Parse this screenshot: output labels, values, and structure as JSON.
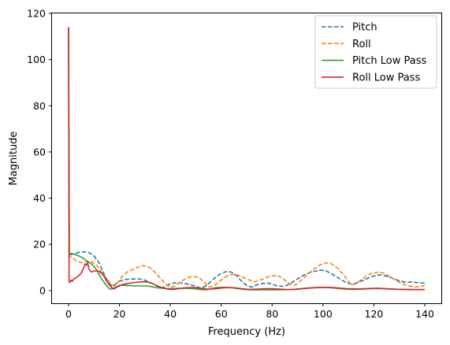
{
  "chart_data": {
    "type": "line",
    "title": "",
    "xlabel": "Frequency (Hz)",
    "ylabel": "Magnitude",
    "xlim": [
      -6.5,
      146.5
    ],
    "ylim": [
      -5.5,
      120
    ],
    "xticks": [
      0,
      20,
      40,
      60,
      80,
      100,
      120,
      140
    ],
    "yticks": [
      0,
      20,
      40,
      60,
      80,
      100,
      120
    ],
    "grid": false,
    "legend_position": "top-right",
    "series": [
      {
        "name": "Pitch",
        "color": "#1f77b4",
        "style": "dashed",
        "points": [
          [
            0,
            114
          ],
          [
            0.3,
            17
          ],
          [
            0.8,
            15.5
          ],
          [
            2,
            16
          ],
          [
            4,
            16.5
          ],
          [
            6,
            16.8
          ],
          [
            8,
            16.5
          ],
          [
            10,
            15
          ],
          [
            12,
            12
          ],
          [
            14,
            7
          ],
          [
            16,
            3
          ],
          [
            17,
            2
          ],
          [
            18,
            2.5
          ],
          [
            20,
            4
          ],
          [
            22,
            4.8
          ],
          [
            25,
            5
          ],
          [
            28,
            5
          ],
          [
            30,
            4.5
          ],
          [
            33,
            3
          ],
          [
            36,
            1.2
          ],
          [
            38,
            1.5
          ],
          [
            40,
            3
          ],
          [
            43,
            3.5
          ],
          [
            46,
            3
          ],
          [
            49,
            2.2
          ],
          [
            52,
            1
          ],
          [
            54,
            2
          ],
          [
            57,
            5
          ],
          [
            60,
            7.5
          ],
          [
            62,
            8.2
          ],
          [
            64,
            8
          ],
          [
            66,
            6.5
          ],
          [
            68,
            4
          ],
          [
            70,
            2.2
          ],
          [
            72,
            1.5
          ],
          [
            74,
            2.5
          ],
          [
            76,
            3
          ],
          [
            78,
            3.3
          ],
          [
            80,
            2.8
          ],
          [
            82,
            2
          ],
          [
            85,
            1.8
          ],
          [
            87,
            3
          ],
          [
            90,
            5
          ],
          [
            93,
            7
          ],
          [
            96,
            8.2
          ],
          [
            99,
            8.8
          ],
          [
            101,
            8.6
          ],
          [
            103,
            7.5
          ],
          [
            106,
            5.5
          ],
          [
            109,
            3.5
          ],
          [
            111,
            2.8
          ],
          [
            113,
            3.2
          ],
          [
            116,
            4.5
          ],
          [
            119,
            6
          ],
          [
            122,
            6.8
          ],
          [
            124,
            6.5
          ],
          [
            127,
            5.5
          ],
          [
            130,
            4.2
          ],
          [
            133,
            3.5
          ],
          [
            135,
            3.8
          ],
          [
            137,
            3.4
          ],
          [
            140,
            3.2
          ]
        ]
      },
      {
        "name": "Roll",
        "color": "#ff7f0e",
        "style": "dashed",
        "points": [
          [
            0,
            114
          ],
          [
            0.3,
            15
          ],
          [
            1,
            14.5
          ],
          [
            3,
            13
          ],
          [
            5,
            12
          ],
          [
            7,
            12.5
          ],
          [
            9,
            12.5
          ],
          [
            11,
            11
          ],
          [
            13,
            8
          ],
          [
            15,
            5
          ],
          [
            17,
            2.5
          ],
          [
            18,
            2
          ],
          [
            19,
            3
          ],
          [
            21,
            6
          ],
          [
            23,
            8
          ],
          [
            26,
            9.5
          ],
          [
            29,
            10.8
          ],
          [
            31,
            10.5
          ],
          [
            33,
            9
          ],
          [
            36,
            5.5
          ],
          [
            38,
            3
          ],
          [
            40,
            1.5
          ],
          [
            42,
            2
          ],
          [
            45,
            4.5
          ],
          [
            48,
            6
          ],
          [
            51,
            5.8
          ],
          [
            53,
            4
          ],
          [
            55,
            1.5
          ],
          [
            57,
            2
          ],
          [
            60,
            4.5
          ],
          [
            63,
            6.8
          ],
          [
            65,
            7
          ],
          [
            67,
            6.5
          ],
          [
            70,
            5
          ],
          [
            73,
            3.8
          ],
          [
            76,
            4.8
          ],
          [
            79,
            6.2
          ],
          [
            82,
            6.5
          ],
          [
            84,
            5.5
          ],
          [
            86,
            3.5
          ],
          [
            88,
            2.2
          ],
          [
            90,
            3
          ],
          [
            93,
            6
          ],
          [
            96,
            9
          ],
          [
            99,
            11.2
          ],
          [
            101,
            12
          ],
          [
            103,
            11.8
          ],
          [
            106,
            9.5
          ],
          [
            109,
            5.5
          ],
          [
            111,
            2.5
          ],
          [
            113,
            3
          ],
          [
            116,
            5.5
          ],
          [
            119,
            7.5
          ],
          [
            122,
            8
          ],
          [
            124,
            7.5
          ],
          [
            127,
            5.5
          ],
          [
            130,
            3.5
          ],
          [
            133,
            2.2
          ],
          [
            136,
            1.5
          ],
          [
            138,
            1.8
          ],
          [
            140,
            2.2
          ]
        ]
      },
      {
        "name": "Pitch Low Pass",
        "color": "#2ca02c",
        "style": "solid",
        "points": [
          [
            0,
            114
          ],
          [
            0.3,
            16
          ],
          [
            1,
            16
          ],
          [
            3,
            15.5
          ],
          [
            5,
            14.5
          ],
          [
            7,
            13
          ],
          [
            9,
            11.5
          ],
          [
            11,
            9
          ],
          [
            13,
            5
          ],
          [
            15,
            2
          ],
          [
            16,
            0.8
          ],
          [
            17,
            0.5
          ],
          [
            18,
            1.2
          ],
          [
            20,
            2.3
          ],
          [
            23,
            2.2
          ],
          [
            26,
            2
          ],
          [
            29,
            2
          ],
          [
            31,
            2
          ],
          [
            33,
            1.6
          ],
          [
            35,
            1.2
          ],
          [
            37,
            1
          ],
          [
            39,
            0.8
          ],
          [
            42,
            0.9
          ],
          [
            45,
            1
          ],
          [
            48,
            0.9
          ],
          [
            51,
            0.6
          ],
          [
            53,
            0.3
          ],
          [
            55,
            0.5
          ],
          [
            58,
            1.3
          ],
          [
            61,
            1.4
          ],
          [
            64,
            1.2
          ],
          [
            67,
            0.8
          ],
          [
            70,
            0.4
          ],
          [
            73,
            0.3
          ],
          [
            76,
            0.3
          ],
          [
            79,
            0.3
          ],
          [
            82,
            0.3
          ],
          [
            85,
            0.4
          ],
          [
            88,
            0.5
          ],
          [
            91,
            0.8
          ],
          [
            94,
            1.1
          ],
          [
            97,
            1.3
          ],
          [
            100,
            1.4
          ],
          [
            103,
            1.2
          ],
          [
            106,
            0.9
          ],
          [
            109,
            0.6
          ],
          [
            112,
            0.5
          ],
          [
            115,
            0.6
          ],
          [
            118,
            0.8
          ],
          [
            121,
            0.9
          ],
          [
            124,
            0.8
          ],
          [
            127,
            0.6
          ],
          [
            130,
            0.5
          ],
          [
            133,
            0.4
          ],
          [
            136,
            0.4
          ],
          [
            140,
            0.4
          ]
        ]
      },
      {
        "name": "Roll Low Pass",
        "color": "#d62728",
        "style": "solid",
        "points": [
          [
            0,
            114
          ],
          [
            0.2,
            4
          ],
          [
            0.5,
            3.5
          ],
          [
            1,
            4.5
          ],
          [
            1.5,
            4
          ],
          [
            2,
            5
          ],
          [
            3,
            5.5
          ],
          [
            4,
            6.5
          ],
          [
            5,
            7.5
          ],
          [
            6,
            10
          ],
          [
            6.5,
            11.5
          ],
          [
            7,
            11
          ],
          [
            7.5,
            12
          ],
          [
            8,
            9.5
          ],
          [
            8.5,
            8.5
          ],
          [
            9,
            8
          ],
          [
            10,
            8.5
          ],
          [
            11,
            8.5
          ],
          [
            12,
            8.3
          ],
          [
            13,
            7.5
          ],
          [
            14,
            6
          ],
          [
            15,
            4
          ],
          [
            16,
            2.5
          ],
          [
            17,
            1.2
          ],
          [
            18,
            0.8
          ],
          [
            19,
            1.5
          ],
          [
            21,
            2.5
          ],
          [
            23,
            3
          ],
          [
            26,
            3.5
          ],
          [
            29,
            3.8
          ],
          [
            31,
            3.7
          ],
          [
            33,
            3
          ],
          [
            35,
            2
          ],
          [
            37,
            1.2
          ],
          [
            39,
            0.6
          ],
          [
            41,
            0.5
          ],
          [
            43,
            0.8
          ],
          [
            46,
            1.2
          ],
          [
            49,
            1.3
          ],
          [
            52,
            1
          ],
          [
            55,
            0.6
          ],
          [
            58,
            0.8
          ],
          [
            61,
            1.2
          ],
          [
            63,
            1.3
          ],
          [
            65,
            1.2
          ],
          [
            68,
            0.8
          ],
          [
            71,
            0.5
          ],
          [
            74,
            0.6
          ],
          [
            77,
            0.8
          ],
          [
            80,
            0.8
          ],
          [
            83,
            0.6
          ],
          [
            86,
            0.4
          ],
          [
            89,
            0.5
          ],
          [
            92,
            0.8
          ],
          [
            95,
            1.1
          ],
          [
            98,
            1.3
          ],
          [
            101,
            1.4
          ],
          [
            104,
            1.3
          ],
          [
            107,
            1
          ],
          [
            110,
            0.8
          ],
          [
            113,
            0.7
          ],
          [
            116,
            0.8
          ],
          [
            119,
            0.9
          ],
          [
            122,
            1
          ],
          [
            125,
            0.8
          ],
          [
            128,
            0.6
          ],
          [
            131,
            0.5
          ],
          [
            134,
            0.5
          ],
          [
            137,
            0.4
          ],
          [
            140,
            0.4
          ]
        ]
      }
    ]
  }
}
